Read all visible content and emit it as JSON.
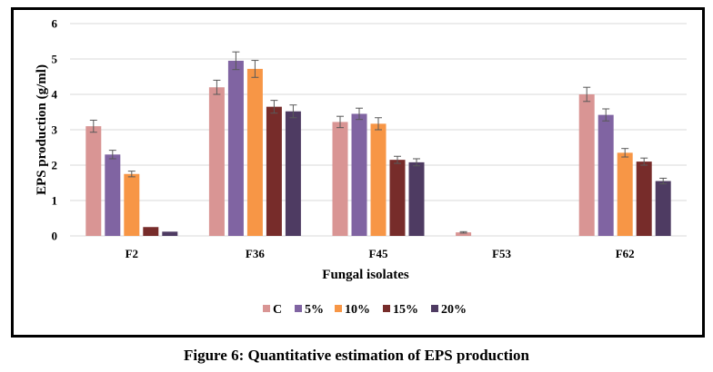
{
  "chart_data": {
    "type": "bar",
    "title": "",
    "xlabel": "Fungal isolates",
    "ylabel": "EPS production (g/ml)",
    "ylim": [
      0,
      6
    ],
    "yticks": [
      "0",
      "1",
      "2",
      "3",
      "4",
      "5",
      "6"
    ],
    "grid": true,
    "legend_position": "bottom",
    "categories": [
      "F2",
      "F36",
      "F45",
      "F53",
      "F62"
    ],
    "series": [
      {
        "name": "C",
        "color": "#D99594",
        "values": [
          3.1,
          4.2,
          3.22,
          0.1,
          4.0
        ],
        "errors": [
          0.17,
          0.2,
          0.16,
          0.02,
          0.2
        ]
      },
      {
        "name": "5%",
        "color": "#8064A2",
        "values": [
          2.3,
          4.95,
          3.45,
          0,
          3.42
        ],
        "errors": [
          0.12,
          0.25,
          0.16,
          0,
          0.17
        ]
      },
      {
        "name": "10%",
        "color": "#F79646",
        "values": [
          1.75,
          4.72,
          3.17,
          0,
          2.35
        ],
        "errors": [
          0.08,
          0.24,
          0.17,
          0,
          0.12
        ]
      },
      {
        "name": "15%",
        "color": "#772C2A",
        "values": [
          0.25,
          3.65,
          2.15,
          0,
          2.1
        ],
        "errors": [
          0.01,
          0.18,
          0.1,
          0,
          0.1
        ]
      },
      {
        "name": "20%",
        "color": "#4E3B62",
        "values": [
          0.12,
          3.52,
          2.08,
          0,
          1.55
        ],
        "errors": [
          0.01,
          0.18,
          0.1,
          0,
          0.08
        ]
      }
    ]
  },
  "caption": "Figure 6: Quantitative estimation of EPS production"
}
